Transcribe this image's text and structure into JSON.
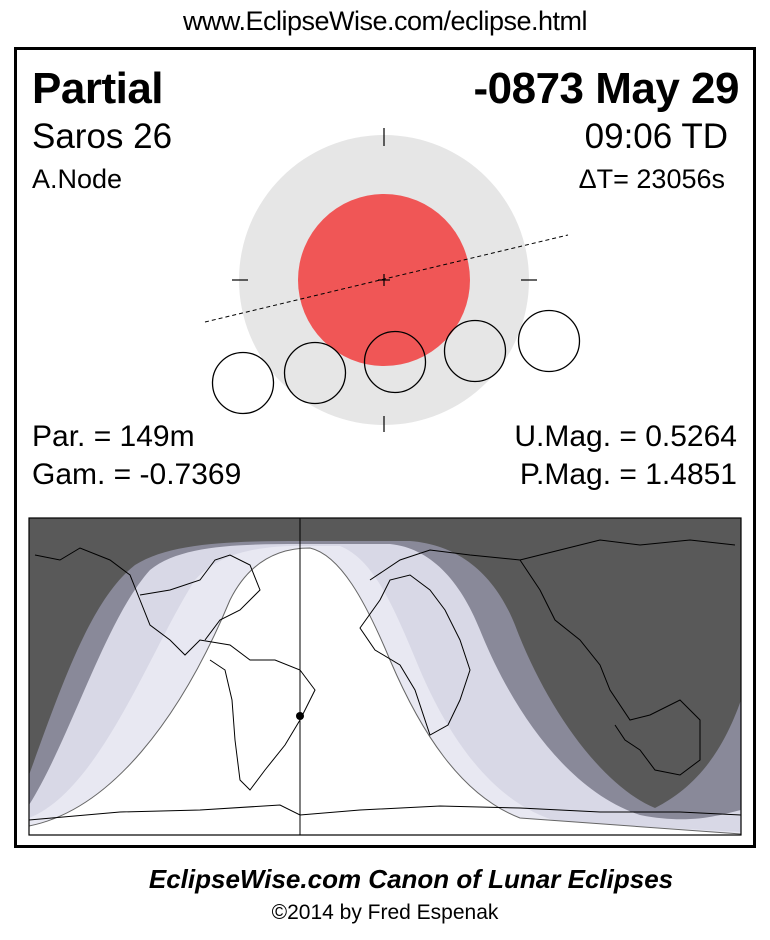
{
  "header_url": "www.EclipseWise.com/eclipse.html",
  "eclipse": {
    "type": "Partial",
    "date": "-0873 May 29",
    "saros": "Saros  26",
    "time": "09:06 TD",
    "node": "A.Node",
    "delta_t": "ΔT=  23056s",
    "partial_duration": "Par. = 149m",
    "gamma": "Gam. = -0.7369",
    "umbral_mag": "U.Mag. = 0.5264",
    "penumbral_mag": "P.Mag. = 1.4851"
  },
  "colors": {
    "umbra": "#f05656",
    "penumbra": "#e6e6e6",
    "night": "#595959",
    "penumbral_band_dark": "#898999",
    "penumbral_band": "#d8d8e6",
    "partial_band": "#e8e8f2"
  },
  "footer": {
    "title": "EclipseWise.com Canon of Lunar Eclipses",
    "copyright": "©2014 by Fred Espenak"
  }
}
